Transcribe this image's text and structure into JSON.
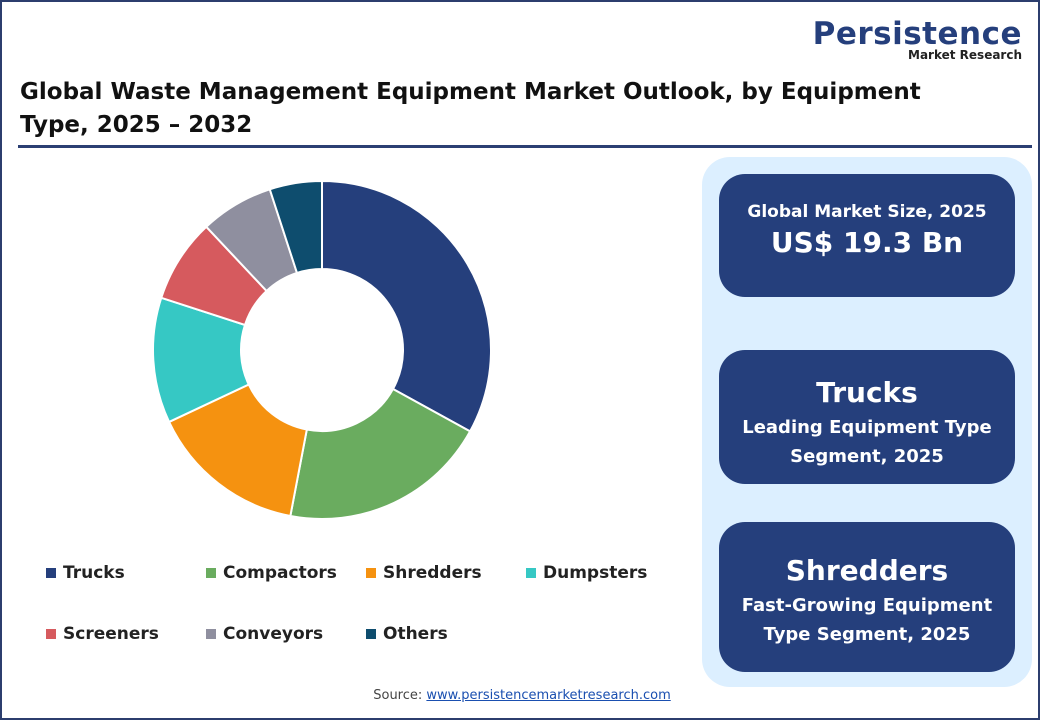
{
  "logo": {
    "name": "Persistence",
    "tagline": "Market Research"
  },
  "chart_data": {
    "type": "donut",
    "title": "Global Waste Management Equipment Market Outlook, by Equipment Type, 2025 – 2032",
    "categories": [
      "Trucks",
      "Compactors",
      "Shredders",
      "Dumpsters",
      "Screeners",
      "Conveyors",
      "Others"
    ],
    "values": [
      33,
      20,
      15,
      12,
      8,
      7,
      5
    ],
    "colors": [
      "#253f7c",
      "#6aac5f",
      "#f59210",
      "#36c8c4",
      "#d65a5e",
      "#8f8f9f",
      "#0e4d6e"
    ],
    "legend": "bottom"
  },
  "panels": [
    {
      "heading": "Global Market Size, 2025",
      "highlight": "US$ 19.3 Bn"
    },
    {
      "highlight": "Trucks",
      "lines": [
        "Leading Equipment Type",
        "Segment, 2025"
      ]
    },
    {
      "highlight": "Shredders",
      "lines": [
        "Fast-Growing Equipment",
        "Type Segment, 2025"
      ]
    }
  ],
  "source": {
    "label": "Source:",
    "link": "www.persistencemarketresearch.com"
  }
}
